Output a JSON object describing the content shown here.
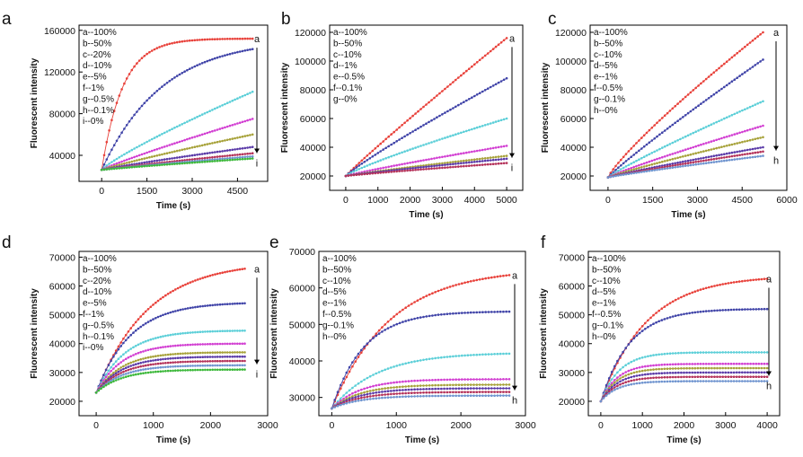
{
  "colors": {
    "a": "#e8413a",
    "b": "#4044a8",
    "c": "#5ccfd8",
    "d": "#d23fd2",
    "e": "#a7a23a",
    "f": "#5a3aa8",
    "g": "#b4325a",
    "h": "#6f94cf",
    "i": "#3db83b"
  },
  "chart_data": [
    {
      "panel": "a",
      "type": "line",
      "xlabel": "Time (s)",
      "ylabel": "Fluorescent intensity",
      "xlim": [
        -750,
        5500
      ],
      "ylim": [
        15000,
        165000
      ],
      "xticks": [
        0,
        1500,
        3000,
        4500
      ],
      "yticks": [
        40000,
        80000,
        120000,
        160000
      ],
      "xmax": 5000,
      "y0": 26000,
      "top_label": "a",
      "bottom_label": "i",
      "series": [
        {
          "name": "a--100%",
          "end": 152000,
          "shape": "sat",
          "tau": 700
        },
        {
          "name": "b--50%",
          "end": 142000,
          "shape": "sat",
          "tau": 2000
        },
        {
          "name": "c--20%",
          "end": 101000,
          "shape": "curve",
          "p": 0.85
        },
        {
          "name": "d--10%",
          "end": 75000,
          "shape": "curve",
          "p": 0.9
        },
        {
          "name": "e--5%",
          "end": 60000,
          "shape": "curve",
          "p": 0.9
        },
        {
          "name": "f--1%",
          "end": 48000,
          "shape": "curve",
          "p": 0.9
        },
        {
          "name": "g--0.5%",
          "end": 42000,
          "shape": "curve",
          "p": 0.9
        },
        {
          "name": "h--0.1%",
          "end": 39000,
          "shape": "curve",
          "p": 0.9
        },
        {
          "name": "i--0%",
          "end": 37000,
          "shape": "curve",
          "p": 0.9
        }
      ]
    },
    {
      "panel": "b",
      "type": "line",
      "xlabel": "Time (s)",
      "ylabel": "Fluorescent intensity",
      "xlim": [
        -500,
        5500
      ],
      "ylim": [
        10000,
        125000
      ],
      "xticks": [
        0,
        1000,
        2000,
        3000,
        4000,
        5000
      ],
      "yticks": [
        20000,
        40000,
        60000,
        80000,
        100000,
        120000
      ],
      "xmax": 5000,
      "y0": 20000,
      "top_label": "a",
      "bottom_label": "i",
      "series": [
        {
          "name": "a--100%",
          "end": 116000,
          "shape": "curve",
          "p": 0.95
        },
        {
          "name": "b--50%",
          "end": 88000,
          "shape": "curve",
          "p": 0.9
        },
        {
          "name": "c--10%",
          "end": 60000,
          "shape": "curve",
          "p": 0.85
        },
        {
          "name": "d--1%",
          "end": 41000,
          "shape": "curve",
          "p": 0.9
        },
        {
          "name": "e--0.5%",
          "end": 34000,
          "shape": "curve",
          "p": 0.9
        },
        {
          "name": "f--0.1%",
          "end": 32000,
          "shape": "curve",
          "p": 0.9
        },
        {
          "name": "g--0%",
          "end": 29000,
          "shape": "curve",
          "p": 0.9
        }
      ]
    },
    {
      "panel": "c",
      "type": "line",
      "xlabel": "Time (s)",
      "ylabel": "Fluorescent intensity",
      "xlim": [
        -600,
        6000
      ],
      "ylim": [
        10000,
        125000
      ],
      "xticks": [
        0,
        1500,
        3000,
        4500,
        6000
      ],
      "yticks": [
        20000,
        40000,
        60000,
        80000,
        100000,
        120000
      ],
      "xmax": 5200,
      "y0": 19000,
      "top_label": "a",
      "bottom_label": "h",
      "series": [
        {
          "name": "a--100%",
          "end": 120000,
          "shape": "curve",
          "p": 0.85
        },
        {
          "name": "b--50%",
          "end": 101000,
          "shape": "curve",
          "p": 0.92
        },
        {
          "name": "c--10%",
          "end": 72000,
          "shape": "curve",
          "p": 0.9
        },
        {
          "name": "d--5%",
          "end": 55000,
          "shape": "curve",
          "p": 0.9
        },
        {
          "name": "e--1%",
          "end": 47000,
          "shape": "curve",
          "p": 0.9
        },
        {
          "name": "f--0.5%",
          "end": 40000,
          "shape": "curve",
          "p": 0.9
        },
        {
          "name": "g--0.1%",
          "end": 37000,
          "shape": "curve",
          "p": 0.9
        },
        {
          "name": "h--0%",
          "end": 34000,
          "shape": "curve",
          "p": 0.9
        }
      ]
    },
    {
      "panel": "d",
      "type": "line",
      "xlabel": "Time (s)",
      "ylabel": "Fluorescent intensity",
      "xlim": [
        -300,
        3000
      ],
      "ylim": [
        15000,
        72000
      ],
      "xticks": [
        0,
        1000,
        2000,
        3000
      ],
      "yticks": [
        20000,
        30000,
        40000,
        50000,
        60000,
        70000
      ],
      "xmax": 2600,
      "y0": 23000,
      "top_label": "a",
      "bottom_label": "i",
      "series": [
        {
          "name": "a--100%",
          "end": 66000,
          "shape": "sat",
          "tau": 900
        },
        {
          "name": "b--50%",
          "end": 54000,
          "shape": "sat",
          "tau": 600
        },
        {
          "name": "c--20%",
          "end": 44500,
          "shape": "sat",
          "tau": 500
        },
        {
          "name": "d--10%",
          "end": 40000,
          "shape": "sat",
          "tau": 450
        },
        {
          "name": "e--5%",
          "end": 37000,
          "shape": "sat",
          "tau": 450
        },
        {
          "name": "f--1%",
          "end": 35500,
          "shape": "sat",
          "tau": 450
        },
        {
          "name": "g--0.5%",
          "end": 34000,
          "shape": "sat",
          "tau": 450
        },
        {
          "name": "h--0.1%",
          "end": 32500,
          "shape": "sat",
          "tau": 450
        },
        {
          "name": "i--0%",
          "end": 31000,
          "shape": "sat",
          "tau": 450
        }
      ]
    },
    {
      "panel": "e",
      "type": "line",
      "xlabel": "Time (s)",
      "ylabel": "Fluorescent intensity",
      "xlim": [
        -200,
        3000
      ],
      "ylim": [
        25000,
        70000
      ],
      "xticks": [
        0,
        1000,
        2000,
        3000
      ],
      "yticks": [
        30000,
        40000,
        50000,
        60000,
        70000
      ],
      "xmax": 2750,
      "y0": 27000,
      "top_label": "a",
      "bottom_label": "h",
      "series": [
        {
          "name": "a--100%",
          "end": 63500,
          "shape": "sat",
          "tau": 900
        },
        {
          "name": "b--50%",
          "end": 53500,
          "shape": "sat",
          "tau": 500
        },
        {
          "name": "c--10%",
          "end": 42000,
          "shape": "sat",
          "tau": 700
        },
        {
          "name": "d--5%",
          "end": 35000,
          "shape": "sat",
          "tau": 450
        },
        {
          "name": "e--1%",
          "end": 33500,
          "shape": "sat",
          "tau": 450
        },
        {
          "name": "f--0.5%",
          "end": 32500,
          "shape": "sat",
          "tau": 450
        },
        {
          "name": "g--0.1%",
          "end": 31500,
          "shape": "sat",
          "tau": 450
        },
        {
          "name": "h--0%",
          "end": 30500,
          "shape": "sat",
          "tau": 450
        }
      ]
    },
    {
      "panel": "f",
      "type": "line",
      "xlabel": "Time (s)",
      "ylabel": "Fluorescent intensity",
      "xlim": [
        -300,
        4300
      ],
      "ylim": [
        15000,
        72000
      ],
      "xticks": [
        0,
        1000,
        2000,
        3000,
        4000
      ],
      "yticks": [
        20000,
        30000,
        40000,
        50000,
        60000,
        70000
      ],
      "xmax": 4000,
      "y0": 20000,
      "top_label": "a",
      "bottom_label": "h",
      "series": [
        {
          "name": "a--100%",
          "end": 62500,
          "shape": "sat",
          "tau": 1100
        },
        {
          "name": "b--50%",
          "end": 52000,
          "shape": "sat",
          "tau": 700
        },
        {
          "name": "c--10%",
          "end": 37000,
          "shape": "sat",
          "tau": 450
        },
        {
          "name": "d--5%",
          "end": 33000,
          "shape": "sat",
          "tau": 400
        },
        {
          "name": "e--1%",
          "end": 31500,
          "shape": "sat",
          "tau": 400
        },
        {
          "name": "f--0.5%",
          "end": 30000,
          "shape": "sat",
          "tau": 400
        },
        {
          "name": "g--0.1%",
          "end": 28500,
          "shape": "sat",
          "tau": 400
        },
        {
          "name": "h--0%",
          "end": 27000,
          "shape": "sat",
          "tau": 400
        }
      ]
    }
  ]
}
